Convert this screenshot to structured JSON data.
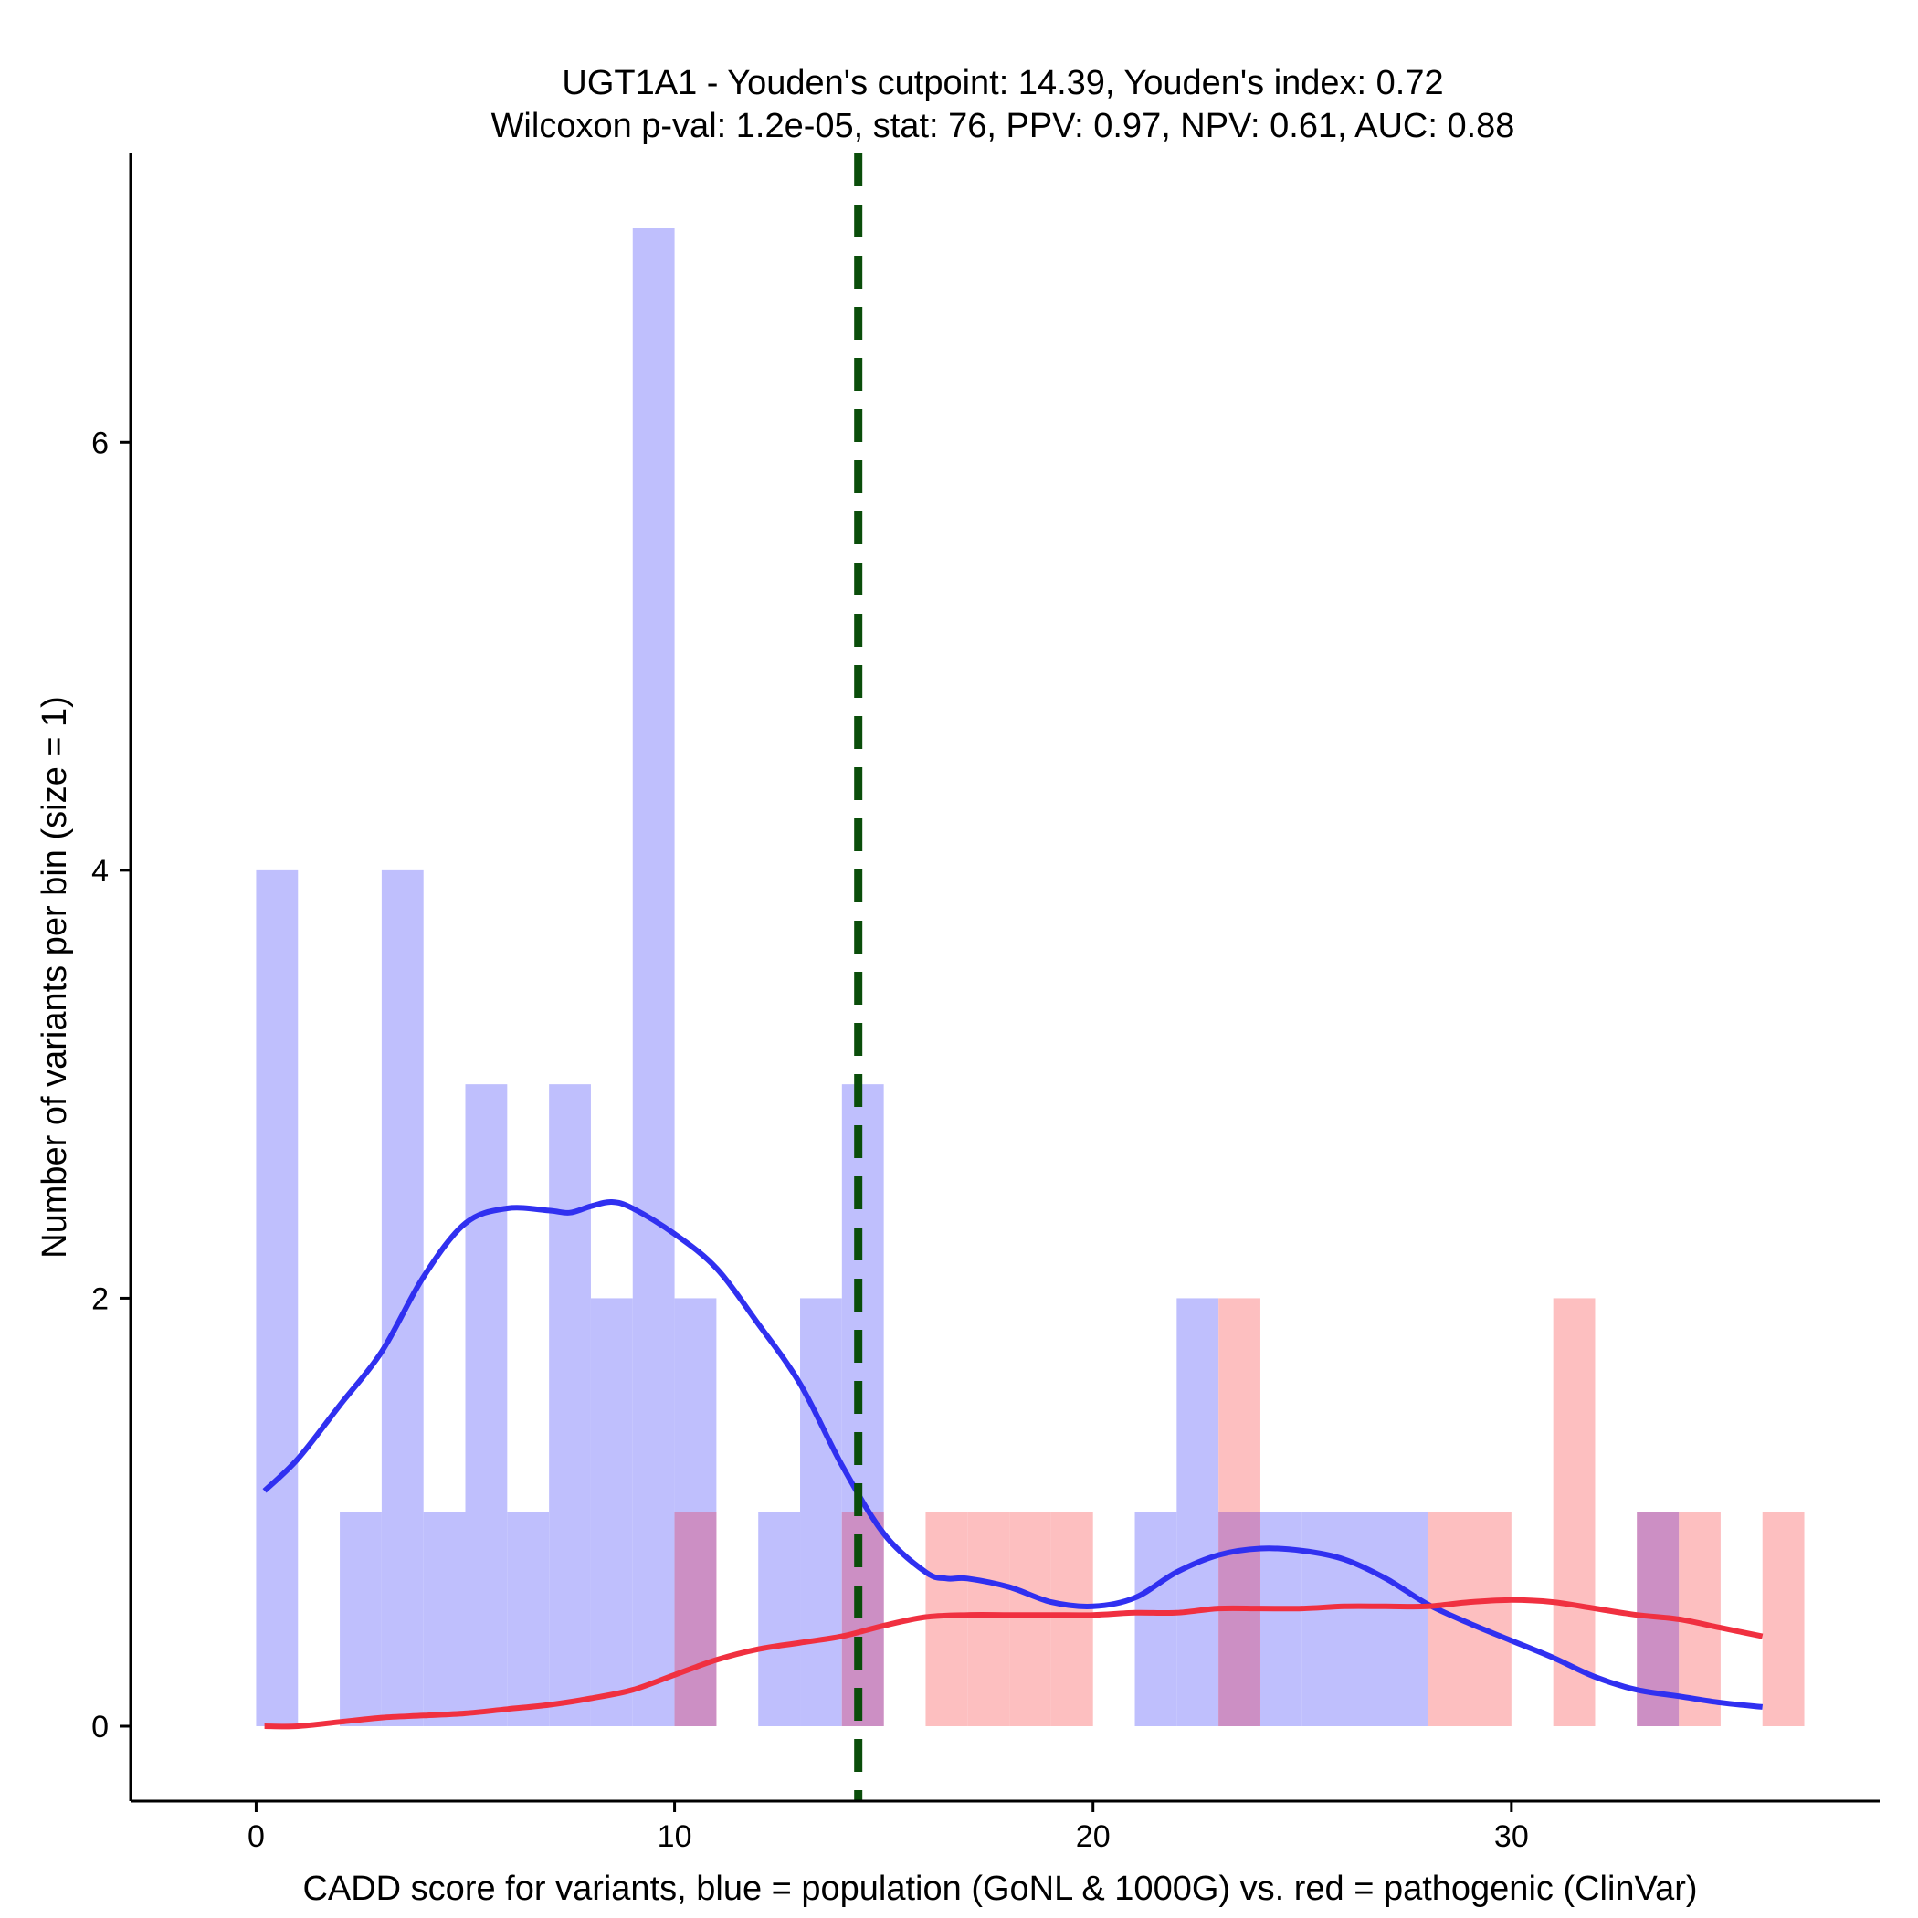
{
  "chart_data": {
    "type": "bar",
    "title_line1": "UGT1A1 - Youden's cutpoint: 14.39, Youden's index: 0.72",
    "title_line2": "Wilcoxon p-val: 1.2e-05, stat: 76, PPV: 0.97, NPV: 0.61, AUC: 0.88",
    "xlabel": "CADD score for variants, blue = population (GoNL & 1000G) vs. red = pathogenic (ClinVar)",
    "ylabel": "Number of variants per bin (size = 1)",
    "xlim": [
      -3,
      38.8
    ],
    "ylim": [
      -0.35,
      7.35
    ],
    "x_ticks": [
      0,
      10,
      20,
      30
    ],
    "x_tick_labels": [
      "0",
      "10",
      "20",
      "30"
    ],
    "y_ticks": [
      0,
      2,
      4,
      6
    ],
    "y_tick_labels": [
      "0",
      "2",
      "4",
      "6"
    ],
    "bin_size": 1,
    "cutpoint": 14.39,
    "colors": {
      "population_bar": "#bfbffd",
      "pathogenic_bar": "#fdbfc0",
      "overlap_bar": "#cc8fc4",
      "population_density": "#3030f0",
      "pathogenic_density": "#f03040",
      "cutpoint_line": "#0a4d0a",
      "axis": "#000000"
    },
    "series": [
      {
        "name": "population (GoNL & 1000G)",
        "kind": "histogram",
        "bins": [
          {
            "start": 0,
            "count": 4
          },
          {
            "start": 2,
            "count": 1
          },
          {
            "start": 3,
            "count": 4
          },
          {
            "start": 4,
            "count": 1
          },
          {
            "start": 5,
            "count": 3
          },
          {
            "start": 6,
            "count": 1
          },
          {
            "start": 7,
            "count": 3
          },
          {
            "start": 8,
            "count": 2
          },
          {
            "start": 9,
            "count": 7
          },
          {
            "start": 10,
            "count": 2
          },
          {
            "start": 12,
            "count": 1
          },
          {
            "start": 13,
            "count": 2
          },
          {
            "start": 14,
            "count": 3
          },
          {
            "start": 21,
            "count": 1
          },
          {
            "start": 22,
            "count": 2
          },
          {
            "start": 23,
            "count": 1
          },
          {
            "start": 24,
            "count": 1
          },
          {
            "start": 25,
            "count": 1
          },
          {
            "start": 26,
            "count": 1
          },
          {
            "start": 27,
            "count": 1
          },
          {
            "start": 33,
            "count": 1
          }
        ]
      },
      {
        "name": "pathogenic (ClinVar)",
        "kind": "histogram",
        "bins": [
          {
            "start": 10,
            "count": 1
          },
          {
            "start": 14,
            "count": 1
          },
          {
            "start": 16,
            "count": 1
          },
          {
            "start": 17,
            "count": 1
          },
          {
            "start": 18,
            "count": 1
          },
          {
            "start": 19,
            "count": 1
          },
          {
            "start": 23,
            "count": 2
          },
          {
            "start": 28,
            "count": 1
          },
          {
            "start": 29,
            "count": 1
          },
          {
            "start": 31,
            "count": 2
          },
          {
            "start": 33,
            "count": 1
          },
          {
            "start": 34,
            "count": 1
          },
          {
            "start": 36,
            "count": 1
          }
        ]
      },
      {
        "name": "population density",
        "kind": "line",
        "x": [
          0.2,
          1,
          2,
          3,
          4,
          5,
          6,
          7,
          7.5,
          8,
          8.5,
          9,
          10,
          11,
          12,
          13,
          14,
          15,
          16,
          16.5,
          17,
          18,
          19,
          20,
          21,
          22,
          23,
          24,
          25,
          26,
          27,
          28,
          29,
          30,
          31,
          32,
          33,
          34,
          35,
          36
        ],
        "y": [
          1.1,
          1.25,
          1.5,
          1.75,
          2.1,
          2.35,
          2.42,
          2.41,
          2.4,
          2.43,
          2.45,
          2.42,
          2.3,
          2.14,
          1.88,
          1.6,
          1.22,
          0.9,
          0.72,
          0.69,
          0.69,
          0.65,
          0.58,
          0.56,
          0.6,
          0.72,
          0.8,
          0.83,
          0.82,
          0.78,
          0.69,
          0.57,
          0.48,
          0.4,
          0.32,
          0.23,
          0.17,
          0.14,
          0.11,
          0.09
        ]
      },
      {
        "name": "pathogenic density",
        "kind": "line",
        "x": [
          0.2,
          1,
          2,
          3,
          4,
          5,
          6,
          7,
          8,
          9,
          10,
          11,
          12,
          13,
          14,
          15,
          16,
          17,
          18,
          19,
          20,
          21,
          22,
          23,
          24,
          25,
          26,
          27,
          28,
          29,
          30,
          31,
          32,
          33,
          34,
          35,
          36
        ],
        "y": [
          0.0,
          0.0,
          0.02,
          0.04,
          0.05,
          0.06,
          0.08,
          0.1,
          0.13,
          0.17,
          0.24,
          0.31,
          0.36,
          0.39,
          0.42,
          0.47,
          0.51,
          0.52,
          0.52,
          0.52,
          0.52,
          0.53,
          0.53,
          0.55,
          0.55,
          0.55,
          0.56,
          0.56,
          0.56,
          0.58,
          0.59,
          0.58,
          0.55,
          0.52,
          0.5,
          0.46,
          0.42
        ]
      }
    ]
  }
}
